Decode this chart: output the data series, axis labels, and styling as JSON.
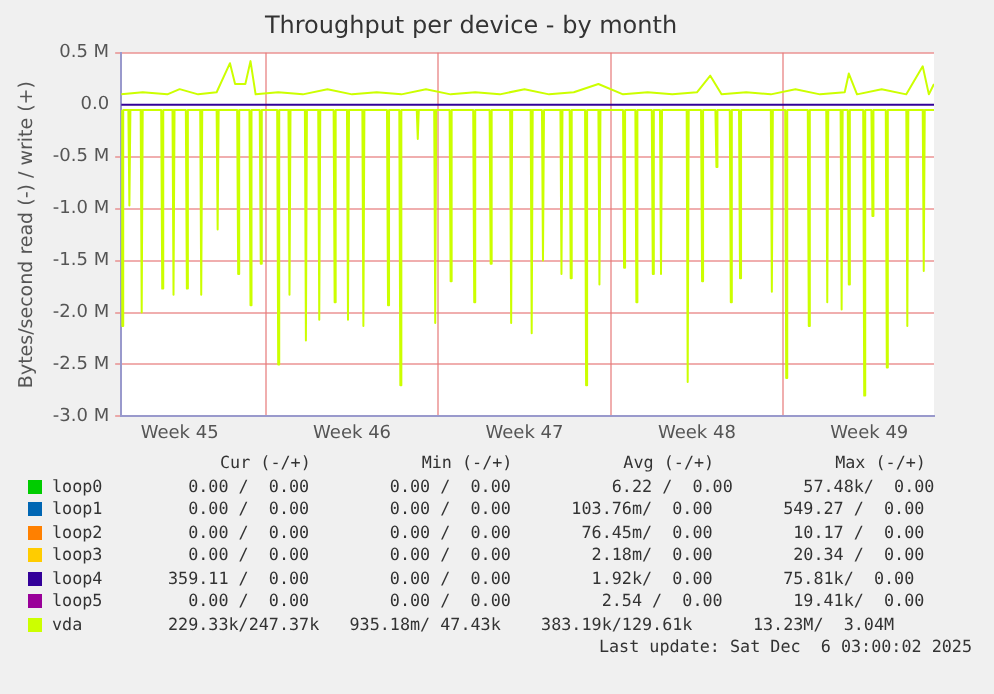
{
  "chart_data": {
    "type": "line",
    "title": "Throughput per device - by month",
    "ylabel": "Bytes/second read (-) / write (+)",
    "xlim": [
      "2025-11-03T03:00",
      "2025-12-06T03:00"
    ],
    "xticks": [
      {
        "value": "2025-11-05T12:00",
        "label": "Week 45"
      },
      {
        "value": "2025-11-09T00:00",
        "label": null
      },
      {
        "value": "2025-11-12T12:00",
        "label": "Week 46"
      },
      {
        "value": "2025-11-16T00:00",
        "label": null
      },
      {
        "value": "2025-11-19T12:00",
        "label": "Week 47"
      },
      {
        "value": "2025-11-23T00:00",
        "label": null
      },
      {
        "value": "2025-11-26T12:00",
        "label": "Week 48"
      },
      {
        "value": "2025-11-30T00:00",
        "label": null
      },
      {
        "value": "2025-12-03T12:00",
        "label": "Week 49"
      }
    ],
    "ylim": [
      -3000000,
      500000
    ],
    "yticks": [
      {
        "value": 500000,
        "label": "0.5 M"
      },
      {
        "value": 0,
        "label": "0.0"
      },
      {
        "value": -500000,
        "label": "-0.5 M"
      },
      {
        "value": -1000000,
        "label": "-1.0 M"
      },
      {
        "value": -1500000,
        "label": "-1.5 M"
      },
      {
        "value": -2000000,
        "label": "-2.0 M"
      },
      {
        "value": -2500000,
        "label": "-2.5 M"
      },
      {
        "value": -3000000,
        "label": "-3.0 M"
      }
    ],
    "grid": true,
    "legend": "bottom",
    "marker": "none",
    "line_style": "solid",
    "series": [
      {
        "name": "loop0",
        "color": "#00cc00"
      },
      {
        "name": "loop1",
        "color": "#0066b3"
      },
      {
        "name": "loop2",
        "color": "#ff8000"
      },
      {
        "name": "loop3",
        "color": "#ffcc00"
      },
      {
        "name": "loop4",
        "color": "#330099",
        "x": [
          "2025-11-03T03:00",
          "2025-12-06T03:00"
        ],
        "values": [
          0,
          0
        ]
      },
      {
        "name": "loop5",
        "color": "#990099"
      },
      {
        "name": "vda",
        "color": "#ccff00",
        "x": [
          "2025-11-03T03:00",
          "2025-11-04T00:00",
          "2025-11-05T00:00",
          "2025-11-05T12:00",
          "2025-11-06T06:00",
          "2025-11-07T00:00",
          "2025-11-07T13:00",
          "2025-11-07T18:00",
          "2025-11-08T04:00",
          "2025-11-08T09:00",
          "2025-11-08T14:00",
          "2025-11-09T12:00",
          "2025-11-10T12:00",
          "2025-11-11T12:00",
          "2025-11-12T12:00",
          "2025-11-13T12:00",
          "2025-11-14T12:00",
          "2025-11-15T12:00",
          "2025-11-16T12:00",
          "2025-11-17T12:00",
          "2025-11-18T12:00",
          "2025-11-19T12:00",
          "2025-11-20T12:00",
          "2025-11-21T12:00",
          "2025-11-22T12:00",
          "2025-11-23T12:00",
          "2025-11-24T12:00",
          "2025-11-25T12:00",
          "2025-11-26T12:00",
          "2025-11-27T01:00",
          "2025-11-27T12:00",
          "2025-11-28T12:00",
          "2025-11-29T12:00",
          "2025-11-30T12:00",
          "2025-12-01T12:00",
          "2025-12-02T12:00",
          "2025-12-02T16:00",
          "2025-12-03T00:00",
          "2025-12-04T00:00",
          "2025-12-05T00:00",
          "2025-12-05T16:00",
          "2025-12-05T22:00",
          "2025-12-06T03:00"
        ],
        "values": [
          100000,
          120000,
          100000,
          150000,
          100000,
          120000,
          400000,
          200000,
          200000,
          420000,
          100000,
          120000,
          100000,
          150000,
          100000,
          120000,
          100000,
          150000,
          100000,
          120000,
          100000,
          150000,
          100000,
          120000,
          200000,
          100000,
          120000,
          100000,
          120000,
          280000,
          100000,
          120000,
          100000,
          150000,
          100000,
          120000,
          300000,
          100000,
          150000,
          100000,
          370000,
          100000,
          200000
        ]
      },
      {
        "color": "#ccff00",
        "x": [
          "2025-11-03T03:00",
          "2025-11-03T04:00",
          "2025-11-03T05:00",
          "2025-11-03T10:00",
          "2025-11-03T11:00",
          "2025-11-03T12:00",
          "2025-11-03T22:00",
          "2025-11-03T23:00",
          "2025-11-04T00:00",
          "2025-11-04T18:00",
          "2025-11-04T19:00",
          "2025-11-04T20:00",
          "2025-11-05T05:00",
          "2025-11-05T06:00",
          "2025-11-05T07:00",
          "2025-11-05T18:00",
          "2025-11-05T19:00",
          "2025-11-05T20:00",
          "2025-11-06T08:00",
          "2025-11-06T09:00",
          "2025-11-06T10:00",
          "2025-11-07T00:00",
          "2025-11-07T01:00",
          "2025-11-07T02:00",
          "2025-11-07T20:00",
          "2025-11-07T21:00",
          "2025-11-07T22:00",
          "2025-11-08T08:00",
          "2025-11-08T09:00",
          "2025-11-08T10:00",
          "2025-11-08T18:00",
          "2025-11-08T19:00",
          "2025-11-08T20:00",
          "2025-11-09T11:00",
          "2025-11-09T12:00",
          "2025-11-09T13:00",
          "2025-11-09T22:00",
          "2025-11-09T23:00",
          "2025-11-10T00:00",
          "2025-11-10T14:00",
          "2025-11-10T15:00",
          "2025-11-10T16:00",
          "2025-11-11T03:00",
          "2025-11-11T04:00",
          "2025-11-11T05:00",
          "2025-11-11T18:00",
          "2025-11-11T19:00",
          "2025-11-11T20:00",
          "2025-11-12T07:00",
          "2025-11-12T08:00",
          "2025-11-12T09:00",
          "2025-11-12T22:00",
          "2025-11-12T23:00",
          "2025-11-13T00:00",
          "2025-11-13T22:00",
          "2025-11-13T23:00",
          "2025-11-14T00:00",
          "2025-11-14T10:00",
          "2025-11-14T11:00",
          "2025-11-14T12:00",
          "2025-11-15T03:00",
          "2025-11-15T04:00",
          "2025-11-15T05:00",
          "2025-11-15T20:00",
          "2025-11-15T21:00",
          "2025-11-15T22:00",
          "2025-11-16T11:00",
          "2025-11-16T12:00",
          "2025-11-16T13:00",
          "2025-11-17T10:00",
          "2025-11-17T11:00",
          "2025-11-17T12:00",
          "2025-11-18T02:00",
          "2025-11-18T03:00",
          "2025-11-18T04:00",
          "2025-11-18T22:00",
          "2025-11-18T23:00",
          "2025-11-19T00:00",
          "2025-11-19T18:00",
          "2025-11-19T19:00",
          "2025-11-19T20:00",
          "2025-11-20T05:00",
          "2025-11-20T06:00",
          "2025-11-20T07:00",
          "2025-11-20T23:00",
          "2025-11-21T00:00",
          "2025-11-21T01:00",
          "2025-11-21T08:00",
          "2025-11-21T09:00",
          "2025-11-21T10:00",
          "2025-11-21T23:00",
          "2025-11-22T00:00",
          "2025-11-22T01:00",
          "2025-11-22T12:00",
          "2025-11-22T13:00",
          "2025-11-22T14:00",
          "2025-11-23T12:00",
          "2025-11-23T13:00",
          "2025-11-23T14:00",
          "2025-11-24T00:00",
          "2025-11-24T01:00",
          "2025-11-24T02:00",
          "2025-11-24T16:00",
          "2025-11-24T17:00",
          "2025-11-24T18:00",
          "2025-11-25T00:00",
          "2025-11-25T01:00",
          "2025-11-25T02:00",
          "2025-11-26T02:00",
          "2025-11-26T03:00",
          "2025-11-26T04:00",
          "2025-11-26T16:00",
          "2025-11-26T17:00",
          "2025-11-26T18:00",
          "2025-11-27T06:00",
          "2025-11-27T07:00",
          "2025-11-27T08:00",
          "2025-11-27T20:00",
          "2025-11-27T21:00",
          "2025-11-27T22:00",
          "2025-11-28T05:00",
          "2025-11-28T06:00",
          "2025-11-28T07:00",
          "2025-11-29T12:00",
          "2025-11-29T13:00",
          "2025-11-29T14:00",
          "2025-11-30T02:00",
          "2025-11-30T03:00",
          "2025-11-30T04:00",
          "2025-12-01T00:00",
          "2025-12-01T01:00",
          "2025-12-01T02:00",
          "2025-12-01T18:00",
          "2025-12-01T19:00",
          "2025-12-01T20:00",
          "2025-12-02T08:00",
          "2025-12-02T09:00",
          "2025-12-02T10:00",
          "2025-12-02T15:00",
          "2025-12-02T16:00",
          "2025-12-02T17:00",
          "2025-12-03T06:00",
          "2025-12-03T07:00",
          "2025-12-03T08:00",
          "2025-12-03T14:00",
          "2025-12-03T15:00",
          "2025-12-03T16:00",
          "2025-12-04T04:00",
          "2025-12-04T05:00",
          "2025-12-04T06:00",
          "2025-12-05T00:00",
          "2025-12-05T01:00",
          "2025-12-05T02:00",
          "2025-12-05T16:00",
          "2025-12-05T17:00",
          "2025-12-05T18:00",
          "2025-12-06T03:00"
        ],
        "values": [
          -50000,
          -2130000,
          -50000,
          -50000,
          -970000,
          -50000,
          -50000,
          -2000000,
          -50000,
          -50000,
          -1770000,
          -50000,
          -50000,
          -1830000,
          -50000,
          -50000,
          -1770000,
          -50000,
          -50000,
          -1830000,
          -50000,
          -50000,
          -1200000,
          -50000,
          -50000,
          -1630000,
          -50000,
          -50000,
          -1930000,
          -50000,
          -50000,
          -1530000,
          -50000,
          -50000,
          -2500000,
          -50000,
          -50000,
          -1830000,
          -50000,
          -50000,
          -2270000,
          -50000,
          -50000,
          -2070000,
          -50000,
          -50000,
          -1900000,
          -50000,
          -50000,
          -2070000,
          -50000,
          -50000,
          -2130000,
          -50000,
          -50000,
          -1930000,
          -50000,
          -50000,
          -2700000,
          -50000,
          -50000,
          -330000,
          -50000,
          -50000,
          -2100000,
          -50000,
          -50000,
          -1700000,
          -50000,
          -50000,
          -1900000,
          -50000,
          -50000,
          -1530000,
          -50000,
          -50000,
          -2100000,
          -50000,
          -50000,
          -2200000,
          -50000,
          -50000,
          -1500000,
          -50000,
          -50000,
          -1630000,
          -50000,
          -50000,
          -1670000,
          -50000,
          -50000,
          -2700000,
          -50000,
          -50000,
          -1730000,
          -50000,
          -50000,
          -1570000,
          -50000,
          -50000,
          -1900000,
          -50000,
          -50000,
          -1630000,
          -50000,
          -50000,
          -1630000,
          -50000,
          -50000,
          -2670000,
          -50000,
          -50000,
          -1700000,
          -50000,
          -50000,
          -600000,
          -50000,
          -50000,
          -1900000,
          -50000,
          -50000,
          -1670000,
          -50000,
          -50000,
          -1800000,
          -50000,
          -50000,
          -2630000,
          -50000,
          -50000,
          -2130000,
          -50000,
          -50000,
          -1900000,
          -50000,
          -50000,
          -1970000,
          -50000,
          -50000,
          -1730000,
          -50000,
          -50000,
          -2800000,
          -50000,
          -50000,
          -1070000,
          -50000,
          -50000,
          -2530000,
          -50000,
          -50000,
          -2130000,
          -50000,
          -50000,
          -1600000,
          -50000,
          -50000
        ]
      }
    ],
    "annotations": [
      "Cur (-/+)           Min (-/+)           Avg (-/+)            Max (-/+)",
      "  0.00 /  0.00        0.00 /  0.00          6.22 /  0.00       57.48k/  0.00",
      "  0.00 /  0.00        0.00 /  0.00      103.76m/  0.00       549.27 /  0.00",
      "  0.00 /  0.00        0.00 /  0.00       76.45m/  0.00        10.17 /  0.00",
      "  0.00 /  0.00        0.00 /  0.00        2.18m/  0.00        20.34 /  0.00",
      "359.11 /  0.00        0.00 /  0.00        1.92k/  0.00       75.81k/  0.00",
      "  0.00 /  0.00        0.00 /  0.00         2.54 /  0.00       19.41k/  0.00",
      "229.33k/247.37k   935.18m/ 47.43k    383.19k/129.61k      13.23M/  3.04M",
      "Last update: Sat Dec  6 03:00:02 2025"
    ]
  }
}
